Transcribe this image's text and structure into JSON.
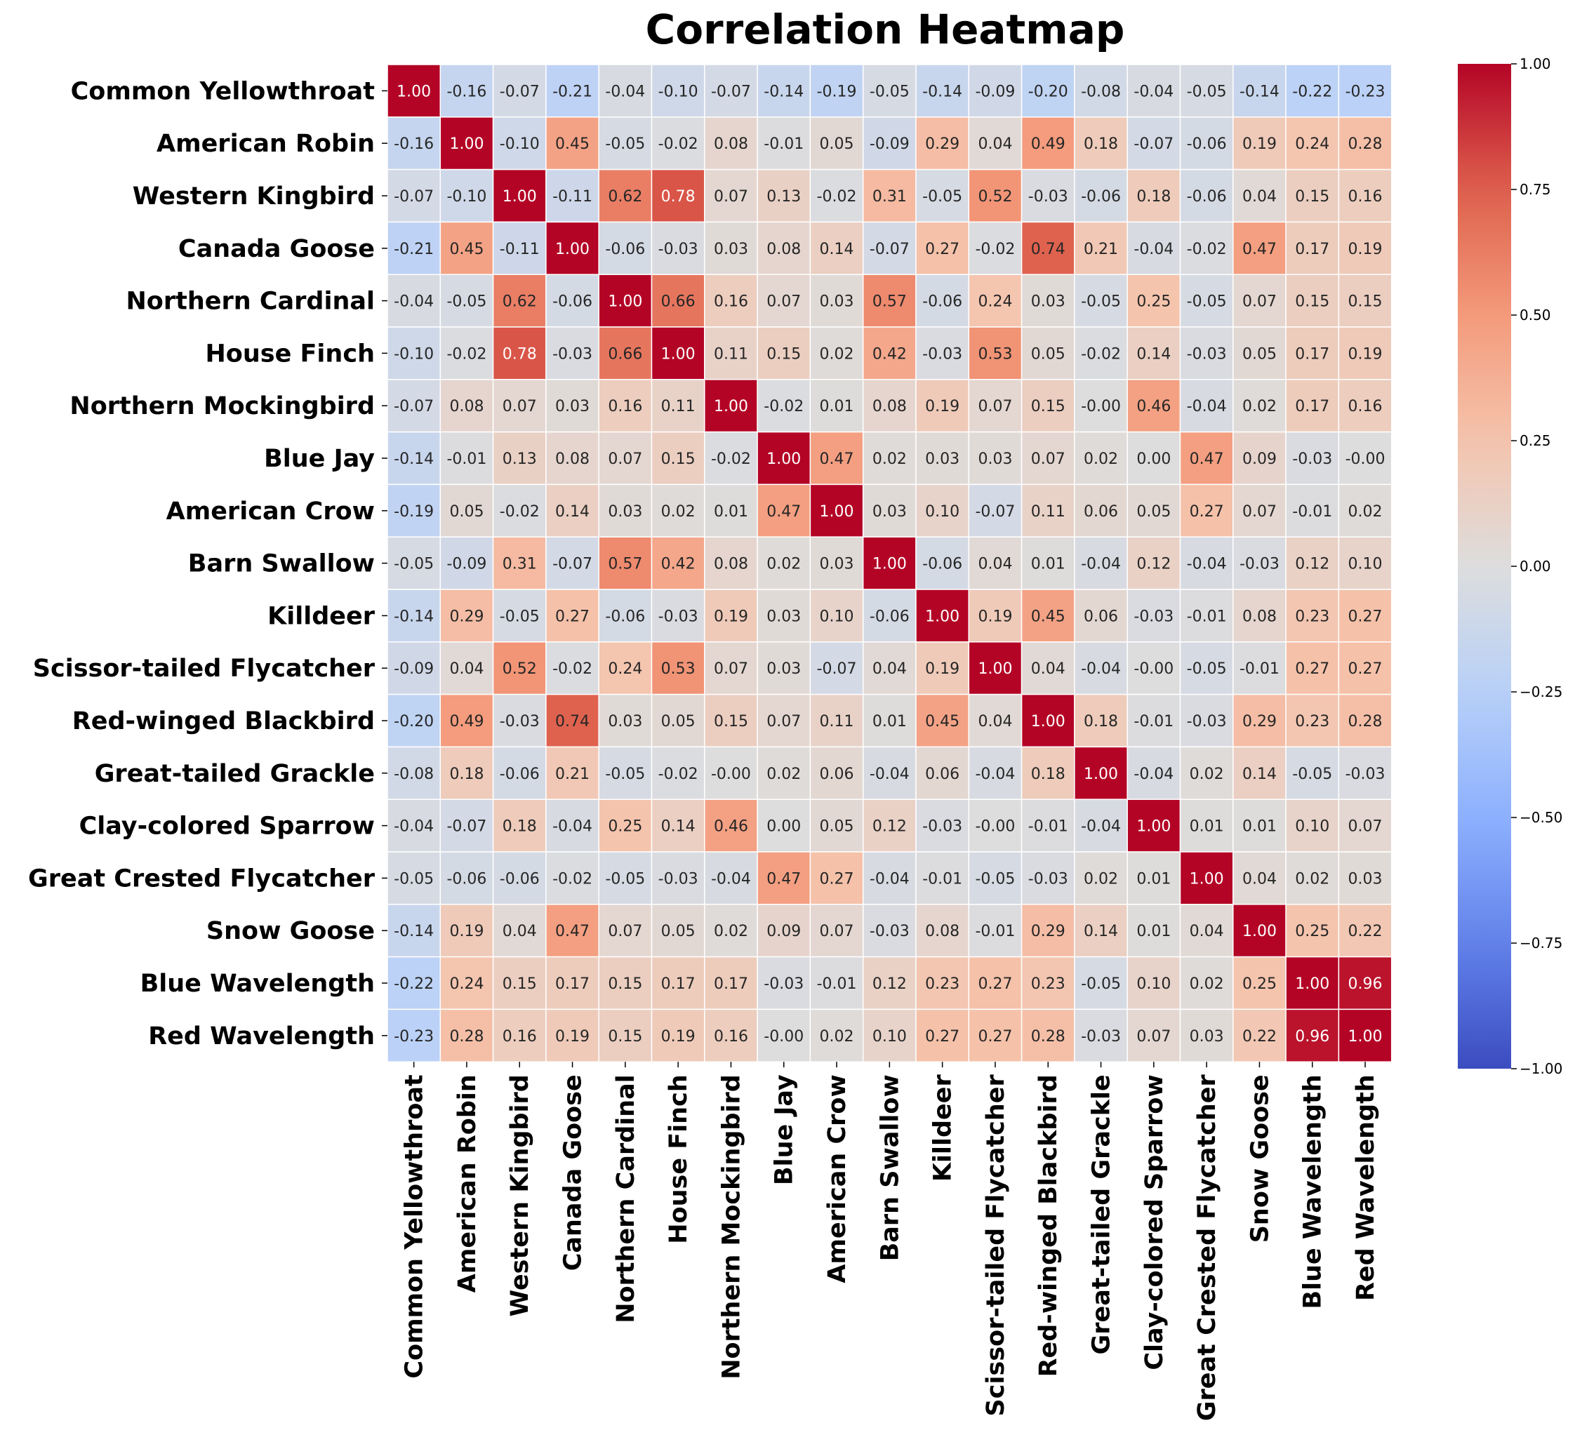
{
  "chart_data": {
    "type": "heatmap",
    "title": "Correlation Heatmap",
    "xlabel": "",
    "ylabel": "",
    "colormap": "coolwarm",
    "vmin": -1.0,
    "vmax": 1.0,
    "colorbar_ticks": [
      1.0,
      0.75,
      0.5,
      0.25,
      0.0,
      -0.25,
      -0.5,
      -0.75,
      -1.0
    ],
    "colorbar_tick_labels": [
      "1.00",
      "0.75",
      "0.50",
      "0.25",
      "0.00",
      "−0.25",
      "−0.50",
      "−0.75",
      "−1.00"
    ],
    "labels": [
      "Common Yellowthroat",
      "American Robin",
      "Western Kingbird",
      "Canada Goose",
      "Northern Cardinal",
      "House Finch",
      "Northern Mockingbird",
      "Blue Jay",
      "American Crow",
      "Barn Swallow",
      "Killdeer",
      "Scissor-tailed Flycatcher",
      "Red-winged Blackbird",
      "Great-tailed Grackle",
      "Clay-colored Sparrow",
      "Great Crested Flycatcher",
      "Snow Goose",
      "Blue Wavelength",
      "Red Wavelength"
    ],
    "matrix": [
      [
        "1.00",
        "-0.16",
        "-0.07",
        "-0.21",
        "-0.04",
        "-0.10",
        "-0.07",
        "-0.14",
        "-0.19",
        "-0.05",
        "-0.14",
        "-0.09",
        "-0.20",
        "-0.08",
        "-0.04",
        "-0.05",
        "-0.14",
        "-0.22",
        "-0.23"
      ],
      [
        "-0.16",
        "1.00",
        "-0.10",
        "0.45",
        "-0.05",
        "-0.02",
        "0.08",
        "-0.01",
        "0.05",
        "-0.09",
        "0.29",
        "0.04",
        "0.49",
        "0.18",
        "-0.07",
        "-0.06",
        "0.19",
        "0.24",
        "0.28"
      ],
      [
        "-0.07",
        "-0.10",
        "1.00",
        "-0.11",
        "0.62",
        "0.78",
        "0.07",
        "0.13",
        "-0.02",
        "0.31",
        "-0.05",
        "0.52",
        "-0.03",
        "-0.06",
        "0.18",
        "-0.06",
        "0.04",
        "0.15",
        "0.16"
      ],
      [
        "-0.21",
        "0.45",
        "-0.11",
        "1.00",
        "-0.06",
        "-0.03",
        "0.03",
        "0.08",
        "0.14",
        "-0.07",
        "0.27",
        "-0.02",
        "0.74",
        "0.21",
        "-0.04",
        "-0.02",
        "0.47",
        "0.17",
        "0.19"
      ],
      [
        "-0.04",
        "-0.05",
        "0.62",
        "-0.06",
        "1.00",
        "0.66",
        "0.16",
        "0.07",
        "0.03",
        "0.57",
        "-0.06",
        "0.24",
        "0.03",
        "-0.05",
        "0.25",
        "-0.05",
        "0.07",
        "0.15",
        "0.15"
      ],
      [
        "-0.10",
        "-0.02",
        "0.78",
        "-0.03",
        "0.66",
        "1.00",
        "0.11",
        "0.15",
        "0.02",
        "0.42",
        "-0.03",
        "0.53",
        "0.05",
        "-0.02",
        "0.14",
        "-0.03",
        "0.05",
        "0.17",
        "0.19"
      ],
      [
        "-0.07",
        "0.08",
        "0.07",
        "0.03",
        "0.16",
        "0.11",
        "1.00",
        "-0.02",
        "0.01",
        "0.08",
        "0.19",
        "0.07",
        "0.15",
        "-0.00",
        "0.46",
        "-0.04",
        "0.02",
        "0.17",
        "0.16"
      ],
      [
        "-0.14",
        "-0.01",
        "0.13",
        "0.08",
        "0.07",
        "0.15",
        "-0.02",
        "1.00",
        "0.47",
        "0.02",
        "0.03",
        "0.03",
        "0.07",
        "0.02",
        "0.00",
        "0.47",
        "0.09",
        "-0.03",
        "-0.00"
      ],
      [
        "-0.19",
        "0.05",
        "-0.02",
        "0.14",
        "0.03",
        "0.02",
        "0.01",
        "0.47",
        "1.00",
        "0.03",
        "0.10",
        "-0.07",
        "0.11",
        "0.06",
        "0.05",
        "0.27",
        "0.07",
        "-0.01",
        "0.02"
      ],
      [
        "-0.05",
        "-0.09",
        "0.31",
        "-0.07",
        "0.57",
        "0.42",
        "0.08",
        "0.02",
        "0.03",
        "1.00",
        "-0.06",
        "0.04",
        "0.01",
        "-0.04",
        "0.12",
        "-0.04",
        "-0.03",
        "0.12",
        "0.10"
      ],
      [
        "-0.14",
        "0.29",
        "-0.05",
        "0.27",
        "-0.06",
        "-0.03",
        "0.19",
        "0.03",
        "0.10",
        "-0.06",
        "1.00",
        "0.19",
        "0.45",
        "0.06",
        "-0.03",
        "-0.01",
        "0.08",
        "0.23",
        "0.27"
      ],
      [
        "-0.09",
        "0.04",
        "0.52",
        "-0.02",
        "0.24",
        "0.53",
        "0.07",
        "0.03",
        "-0.07",
        "0.04",
        "0.19",
        "1.00",
        "0.04",
        "-0.04",
        "-0.00",
        "-0.05",
        "-0.01",
        "0.27",
        "0.27"
      ],
      [
        "-0.20",
        "0.49",
        "-0.03",
        "0.74",
        "0.03",
        "0.05",
        "0.15",
        "0.07",
        "0.11",
        "0.01",
        "0.45",
        "0.04",
        "1.00",
        "0.18",
        "-0.01",
        "-0.03",
        "0.29",
        "0.23",
        "0.28"
      ],
      [
        "-0.08",
        "0.18",
        "-0.06",
        "0.21",
        "-0.05",
        "-0.02",
        "-0.00",
        "0.02",
        "0.06",
        "-0.04",
        "0.06",
        "-0.04",
        "0.18",
        "1.00",
        "-0.04",
        "0.02",
        "0.14",
        "-0.05",
        "-0.03"
      ],
      [
        "-0.04",
        "-0.07",
        "0.18",
        "-0.04",
        "0.25",
        "0.14",
        "0.46",
        "0.00",
        "0.05",
        "0.12",
        "-0.03",
        "-0.00",
        "-0.01",
        "-0.04",
        "1.00",
        "0.01",
        "0.01",
        "0.10",
        "0.07"
      ],
      [
        "-0.05",
        "-0.06",
        "-0.06",
        "-0.02",
        "-0.05",
        "-0.03",
        "-0.04",
        "0.47",
        "0.27",
        "-0.04",
        "-0.01",
        "-0.05",
        "-0.03",
        "0.02",
        "0.01",
        "1.00",
        "0.04",
        "0.02",
        "0.03"
      ],
      [
        "-0.14",
        "0.19",
        "0.04",
        "0.47",
        "0.07",
        "0.05",
        "0.02",
        "0.09",
        "0.07",
        "-0.03",
        "0.08",
        "-0.01",
        "0.29",
        "0.14",
        "0.01",
        "0.04",
        "1.00",
        "0.25",
        "0.22"
      ],
      [
        "-0.22",
        "0.24",
        "0.15",
        "0.17",
        "0.15",
        "0.17",
        "0.17",
        "-0.03",
        "-0.01",
        "0.12",
        "0.23",
        "0.27",
        "0.23",
        "-0.05",
        "0.10",
        "0.02",
        "0.25",
        "1.00",
        "0.96"
      ],
      [
        "-0.23",
        "0.28",
        "0.16",
        "0.19",
        "0.15",
        "0.19",
        "0.16",
        "-0.00",
        "0.02",
        "0.10",
        "0.27",
        "0.27",
        "0.28",
        "-0.03",
        "0.07",
        "0.03",
        "0.22",
        "0.96",
        "1.00"
      ]
    ]
  }
}
